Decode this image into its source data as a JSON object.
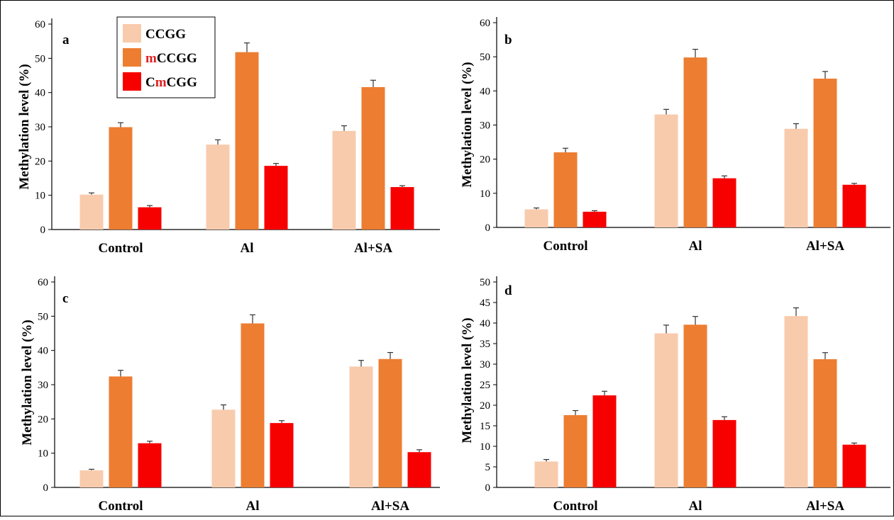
{
  "colors": {
    "CCGG": "#F8CBAD",
    "mCCGG": "#ED7D31",
    "CmCGG": "#F70000",
    "legend_accent": "#E02020"
  },
  "legend": {
    "placement": "top-left",
    "entries": [
      {
        "prefix": "",
        "accent": "",
        "suffix": "CCGG"
      },
      {
        "prefix": "",
        "accent": "m",
        "suffix": "CCGG"
      },
      {
        "prefix": "C",
        "accent": "m",
        "suffix": "CGG"
      }
    ]
  },
  "chart_data": [
    {
      "type": "bar",
      "panel": "a",
      "ylabel": "Methylation level (%)",
      "ylim": [
        0,
        60
      ],
      "yticks": [
        0,
        10,
        20,
        30,
        40,
        50,
        60
      ],
      "categories": [
        "Control",
        "Al",
        "Al+SA"
      ],
      "series": [
        {
          "name": "CCGG",
          "values": [
            10.2,
            24.8,
            28.8
          ],
          "errors": [
            0.5,
            1.4,
            1.5
          ]
        },
        {
          "name": "mCCGG",
          "values": [
            29.9,
            51.8,
            41.6
          ],
          "errors": [
            1.3,
            2.7,
            2.0
          ]
        },
        {
          "name": "CmCGG",
          "values": [
            6.5,
            18.6,
            12.4
          ],
          "errors": [
            0.5,
            0.7,
            0.4
          ]
        }
      ]
    },
    {
      "type": "bar",
      "panel": "b",
      "ylabel": "Methylation level (%)",
      "ylim": [
        0,
        60
      ],
      "yticks": [
        0,
        10,
        20,
        30,
        40,
        50,
        60
      ],
      "categories": [
        "Control",
        "Al",
        "Al+SA"
      ],
      "series": [
        {
          "name": "CCGG",
          "values": [
            5.3,
            33.1,
            28.9
          ],
          "errors": [
            0.4,
            1.5,
            1.5
          ]
        },
        {
          "name": "mCCGG",
          "values": [
            22.0,
            49.8,
            43.6
          ],
          "errors": [
            1.2,
            2.4,
            2.1
          ]
        },
        {
          "name": "CmCGG",
          "values": [
            4.6,
            14.4,
            12.5
          ],
          "errors": [
            0.3,
            0.7,
            0.4
          ]
        }
      ]
    },
    {
      "type": "bar",
      "panel": "c",
      "ylabel": "Methylation level (%)",
      "ylim": [
        0,
        60
      ],
      "yticks": [
        0,
        10,
        20,
        30,
        40,
        50,
        60
      ],
      "categories": [
        "Control",
        "Al",
        "Al+SA"
      ],
      "series": [
        {
          "name": "CCGG",
          "values": [
            5.0,
            22.7,
            35.3
          ],
          "errors": [
            0.3,
            1.4,
            1.8
          ]
        },
        {
          "name": "mCCGG",
          "values": [
            32.4,
            47.9,
            37.5
          ],
          "errors": [
            1.8,
            2.5,
            1.9
          ]
        },
        {
          "name": "CmCGG",
          "values": [
            12.9,
            18.8,
            10.3
          ],
          "errors": [
            0.6,
            0.7,
            0.7
          ]
        }
      ]
    },
    {
      "type": "bar",
      "panel": "d",
      "ylabel": "Methylation level (%)",
      "ylim": [
        0,
        50
      ],
      "yticks": [
        0,
        5,
        10,
        15,
        20,
        25,
        30,
        35,
        40,
        45,
        50
      ],
      "categories": [
        "Control",
        "Al",
        "Al+SA"
      ],
      "series": [
        {
          "name": "CCGG",
          "values": [
            6.3,
            37.5,
            41.7
          ],
          "errors": [
            0.5,
            2.0,
            2.0
          ]
        },
        {
          "name": "mCCGG",
          "values": [
            17.6,
            39.6,
            31.2
          ],
          "errors": [
            1.1,
            2.0,
            1.6
          ]
        },
        {
          "name": "CmCGG",
          "values": [
            22.4,
            16.4,
            10.4
          ],
          "errors": [
            1.0,
            0.8,
            0.4
          ]
        }
      ]
    }
  ]
}
